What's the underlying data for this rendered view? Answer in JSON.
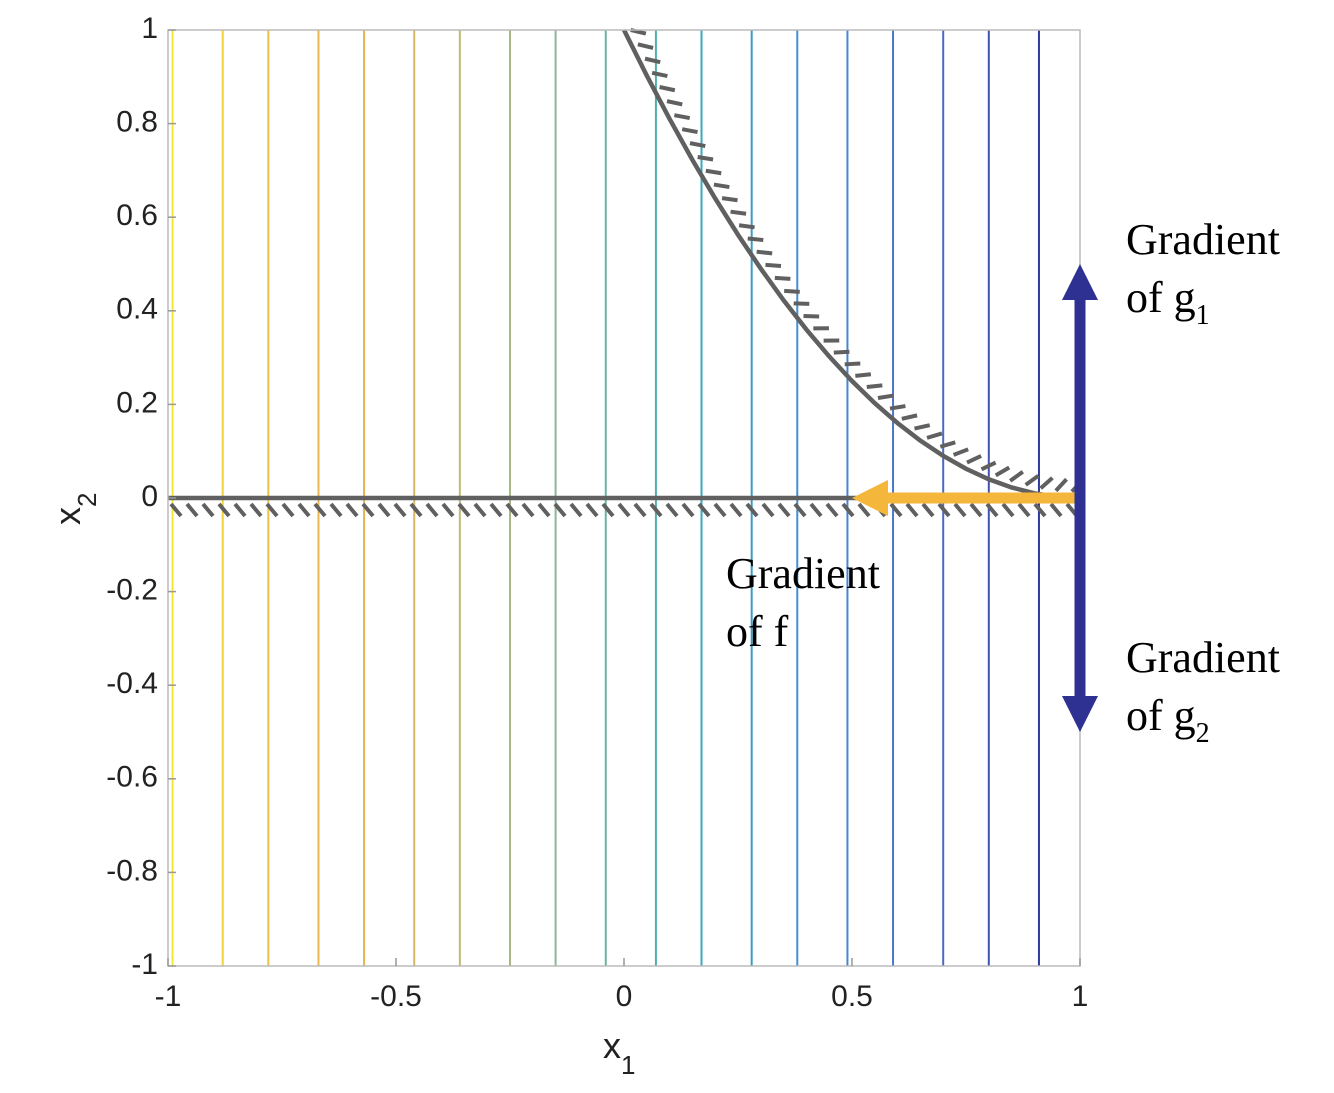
{
  "chart_data": {
    "type": "contour",
    "xlabel": "x",
    "xlabel_sub": "1",
    "ylabel": "x",
    "ylabel_sub": "2",
    "xlim": [
      -1,
      1
    ],
    "ylim": [
      -1,
      1
    ],
    "xticks": [
      -1,
      -0.5,
      0,
      0.5,
      1
    ],
    "yticks": [
      -1,
      -0.8,
      -0.6,
      -0.4,
      -0.2,
      0,
      0.2,
      0.4,
      0.6,
      0.8,
      1
    ],
    "contour_x": [
      -0.99,
      -0.88,
      -0.78,
      -0.67,
      -0.57,
      -0.46,
      -0.36,
      -0.25,
      -0.15,
      -0.04,
      0.07,
      0.17,
      0.28,
      0.38,
      0.49,
      0.59,
      0.7,
      0.8,
      0.91
    ],
    "contour_colors": [
      "#f5e830",
      "#f0d23a",
      "#ecc244",
      "#e8b84c",
      "#e2b552",
      "#d5b864",
      "#c2b978",
      "#a9b887",
      "#8db596",
      "#6db3a3",
      "#4cb0b0",
      "#3aa8bd",
      "#3b9bc8",
      "#4190d0",
      "#4684d1",
      "#4978cb",
      "#4a6ac0",
      "#3f52ae",
      "#2e3a98"
    ],
    "constraints": [
      {
        "x": [
          0,
          0.05,
          0.1,
          0.15,
          0.2,
          0.25,
          0.3,
          0.35,
          0.4,
          0.45,
          0.5,
          0.55,
          0.6,
          0.65,
          0.7,
          0.75,
          0.8,
          0.85,
          0.9,
          0.95,
          1
        ],
        "values": [
          1,
          0.9025,
          0.81,
          0.7225,
          0.64,
          0.5625,
          0.49,
          0.4225,
          0.36,
          0.3025,
          0.25,
          0.2025,
          0.16,
          0.1225,
          0.09,
          0.0625,
          0.04,
          0.0225,
          0.01,
          0.0025,
          0
        ],
        "color": "#606060",
        "hatch_side": "above"
      },
      {
        "x": [
          -1,
          1
        ],
        "values": [
          0,
          0
        ],
        "color": "#606060",
        "hatch_side": "below"
      }
    ],
    "arrows": [
      {
        "x": [
          1,
          0.5
        ],
        "values": [
          0,
          0
        ],
        "color": "#f5b73b",
        "label": "Gradient",
        "label2": "of f"
      },
      {
        "x": [
          1,
          1
        ],
        "values": [
          0,
          0.5
        ],
        "color": "#2e3192",
        "label": "Gradient",
        "label2": "of g",
        "sub": "1"
      },
      {
        "x": [
          1,
          1
        ],
        "values": [
          0,
          -0.5
        ],
        "color": "#2e3192",
        "label": "Gradient",
        "label2": "of g",
        "sub": "2"
      }
    ]
  }
}
